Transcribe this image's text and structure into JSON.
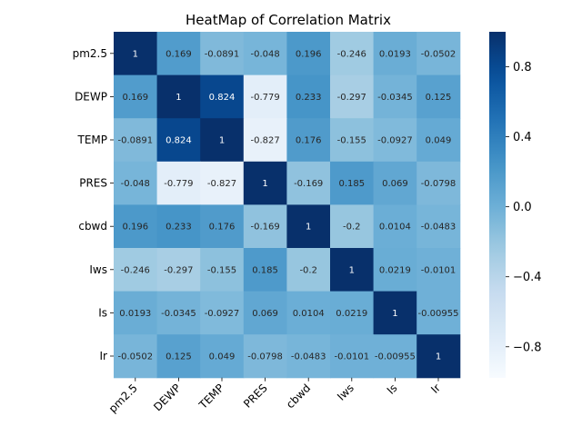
{
  "chart_data": {
    "type": "heatmap",
    "title": "HeatMap of Correlation Matrix",
    "xlabel": "",
    "ylabel": "",
    "row_labels": [
      "pm2.5",
      "DEWP",
      "TEMP",
      "PRES",
      "cbwd",
      "Iws",
      "Is",
      "Ir"
    ],
    "col_labels": [
      "pm2.5",
      "DEWP",
      "TEMP",
      "PRES",
      "cbwd",
      "Iws",
      "Is",
      "Ir"
    ],
    "values": [
      [
        1,
        0.169,
        -0.0891,
        -0.048,
        0.196,
        -0.246,
        0.0193,
        -0.0502
      ],
      [
        0.169,
        1,
        0.824,
        -0.779,
        0.233,
        -0.297,
        -0.0345,
        0.125
      ],
      [
        -0.0891,
        0.824,
        1,
        -0.827,
        0.176,
        -0.155,
        -0.0927,
        0.049
      ],
      [
        -0.048,
        -0.779,
        -0.827,
        1,
        -0.169,
        0.185,
        0.069,
        -0.0798
      ],
      [
        0.196,
        0.233,
        0.176,
        -0.169,
        1,
        -0.2,
        0.0104,
        -0.0483
      ],
      [
        -0.246,
        -0.297,
        -0.155,
        0.185,
        -0.2,
        1,
        0.0219,
        -0.0101
      ],
      [
        0.0193,
        -0.0345,
        -0.0927,
        0.069,
        0.0104,
        0.0219,
        1,
        -0.00955
      ],
      [
        -0.0502,
        0.125,
        0.049,
        -0.0798,
        -0.0483,
        -0.0101,
        -0.00955,
        1
      ]
    ],
    "cell_labels": [
      [
        "1",
        "0.169",
        "-0.0891",
        "-0.048",
        "0.196",
        "-0.246",
        "0.0193",
        "-0.0502"
      ],
      [
        "0.169",
        "1",
        "0.824",
        "-0.779",
        "0.233",
        "-0.297",
        "-0.0345",
        "0.125"
      ],
      [
        "-0.0891",
        "0.824",
        "1",
        "-0.827",
        "0.176",
        "-0.155",
        "-0.0927",
        "0.049"
      ],
      [
        "-0.048",
        "-0.779",
        "-0.827",
        "1",
        "-0.169",
        "0.185",
        "0.069",
        "-0.0798"
      ],
      [
        "0.196",
        "0.233",
        "0.176",
        "-0.169",
        "1",
        "-0.2",
        "0.0104",
        "-0.0483"
      ],
      [
        "-0.246",
        "-0.297",
        "-0.155",
        "0.185",
        "-0.2",
        "1",
        "0.0219",
        "-0.0101"
      ],
      [
        "0.0193",
        "-0.0345",
        "-0.0927",
        "0.069",
        "0.0104",
        "0.0219",
        "1",
        "-0.00955"
      ],
      [
        "-0.0502",
        "0.125",
        "0.049",
        "-0.0798",
        "-0.0483",
        "-0.0101",
        "-0.00955",
        "1"
      ]
    ],
    "colormap": "Blues",
    "vmin": -0.9777,
    "vmax": 1,
    "colorbar_ticks": [
      0.8,
      0.4,
      0.0,
      -0.4,
      -0.8
    ],
    "colorbar_tick_labels": [
      "0.8",
      "0.4",
      "0.0",
      "−0.4",
      "−0.8"
    ],
    "grid": false,
    "legend": "colorbar-right"
  }
}
